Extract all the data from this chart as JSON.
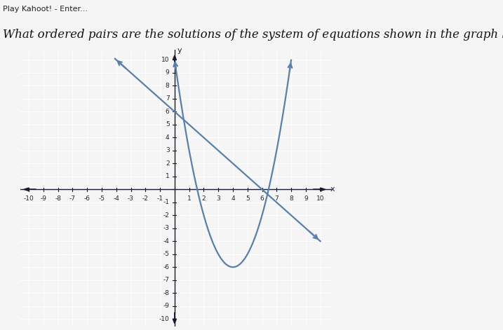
{
  "title": "What ordered pairs are the solutions of the system of equations shown in the graph below?",
  "header": "Play Kahoot! - Enter...",
  "xlim": [
    -10,
    10
  ],
  "ylim": [
    -10,
    10
  ],
  "line_color": "#5a7fa8",
  "parabola_color": "#5a7fa8",
  "background_color": "#dcdcdc",
  "grid_color": "#ffffff",
  "axis_color": "#1a1a2e",
  "line_slope": -1,
  "line_intercept": 6,
  "parabola_a": 1,
  "parabola_b": -8,
  "parabola_c": 10,
  "fig_width": 7.17,
  "fig_height": 4.71,
  "dpi": 100,
  "font_size_title": 12,
  "font_size_header": 8,
  "tick_fontsize": 6.5,
  "curve_lw": 1.6
}
